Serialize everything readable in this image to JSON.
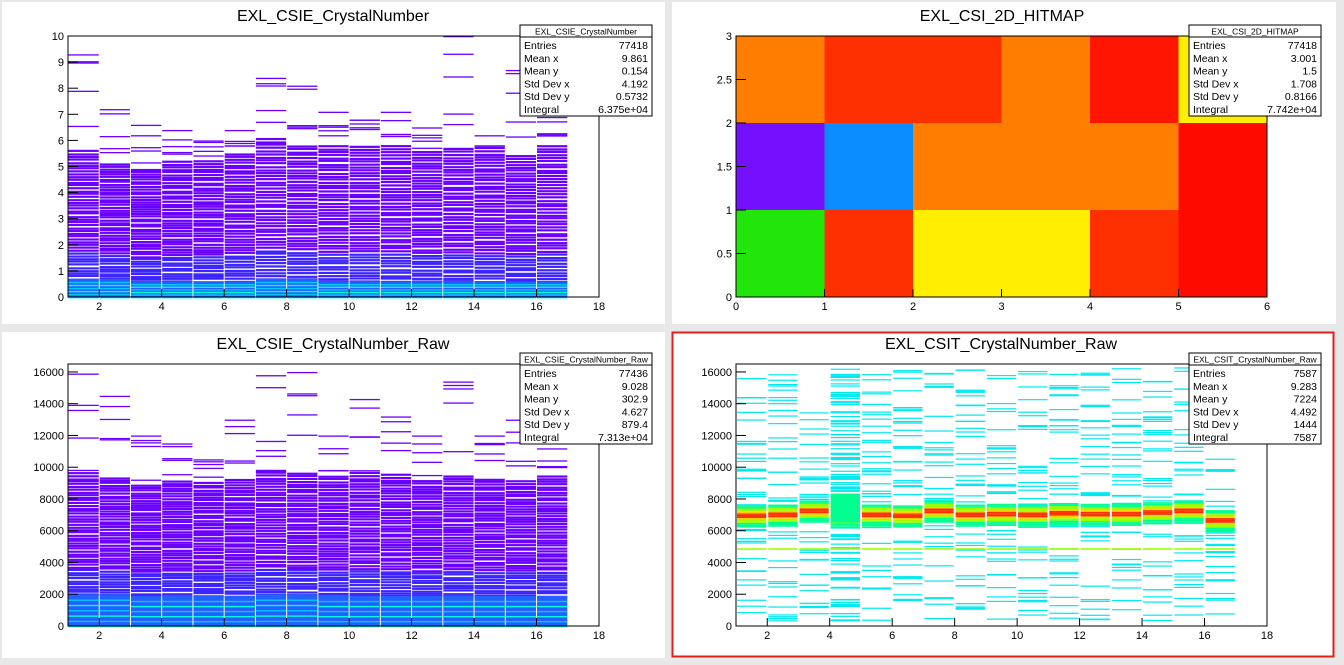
{
  "window": {
    "selected_pad_border_color": "#e0201f",
    "pad_background": "#ffffff",
    "canvas_background": "#e8e8e8"
  },
  "chart_data": [
    {
      "type": "heatmap",
      "title": "EXL_CSIE_CrystalNumber",
      "xlim": [
        1,
        18
      ],
      "ylim": [
        0,
        10
      ],
      "x_ticks": [
        "2",
        "4",
        "6",
        "8",
        "10",
        "12",
        "14",
        "16",
        "18"
      ],
      "y_ticks": [
        "0",
        "1",
        "2",
        "3",
        "4",
        "5",
        "6",
        "7",
        "8",
        "9",
        "10"
      ],
      "x_bins": [
        1,
        2,
        3,
        4,
        5,
        6,
        7,
        8,
        9,
        10,
        11,
        12,
        13,
        14,
        15,
        16
      ],
      "column_max_y": [
        9.3,
        7.2,
        6.6,
        6.4,
        6.0,
        6.4,
        8.4,
        8.1,
        7.1,
        6.8,
        7.1,
        6.5,
        10.0,
        6.2,
        8.7,
        6.9
      ],
      "bulk_top_y": [
        5.7,
        5.2,
        5.0,
        5.3,
        5.3,
        5.6,
        6.2,
        5.9,
        5.9,
        5.9,
        5.9,
        5.7,
        5.8,
        5.7,
        5.5,
        5.9
      ],
      "low_band_top_y": [
        0.7,
        0.7,
        0.6,
        0.6,
        0.6,
        0.6,
        0.7,
        0.7,
        0.6,
        0.6,
        0.6,
        0.6,
        0.6,
        0.6,
        0.6,
        0.6
      ],
      "stats": {
        "name": "EXL_CSIE_CrystalNumber",
        "rows": [
          [
            "Entries",
            "77418"
          ],
          [
            "Mean x",
            "9.861"
          ],
          [
            "Mean y",
            "0.154"
          ],
          [
            "Std Dev x",
            "4.192"
          ],
          [
            "Std Dev y",
            "0.5732"
          ],
          [
            "Integral",
            "6.375e+04"
          ]
        ]
      },
      "palette": [
        "#6a00ff",
        "#3d24ff",
        "#2460ff",
        "#00c8ff",
        "#00ffd8"
      ]
    },
    {
      "type": "heatmap",
      "title": "EXL_CSI_2D_HITMAP",
      "xlim": [
        0,
        6
      ],
      "ylim": [
        0,
        3
      ],
      "x_ticks": [
        "0",
        "1",
        "2",
        "3",
        "4",
        "5",
        "6"
      ],
      "y_ticks": [
        "0",
        "0.5",
        "1",
        "1.5",
        "2",
        "2.5",
        "3"
      ],
      "x_edges": [
        0,
        1,
        2,
        3,
        4,
        5,
        6
      ],
      "y_edges": [
        0,
        1,
        2,
        3
      ],
      "cells": [
        [
          "#22e60a",
          "#ff3000",
          "#ffee00",
          "#ffee00",
          "#ff3000",
          "#ff0a00"
        ],
        [
          "#7510ff",
          "#0a8cff",
          "#ff7d00",
          "#ff7d00",
          "#ff7d00",
          "#ff0a00"
        ],
        [
          "#ff7d00",
          "#ff3000",
          "#ff3000",
          "#ff7d00",
          "#ff1500",
          "#ffee00"
        ]
      ],
      "stats": {
        "name": "EXL_CSI_2D_HITMAP",
        "rows": [
          [
            "Entries",
            "77418"
          ],
          [
            "Mean x",
            "3.001"
          ],
          [
            "Mean y",
            "1.5"
          ],
          [
            "Std Dev x",
            "1.708"
          ],
          [
            "Std Dev y",
            "0.8166"
          ],
          [
            "Integral",
            "7.742e+04"
          ]
        ]
      }
    },
    {
      "type": "heatmap",
      "title": "EXL_CSIE_CrystalNumber_Raw",
      "xlim": [
        1,
        18
      ],
      "ylim": [
        0,
        16500
      ],
      "x_ticks": [
        "2",
        "4",
        "6",
        "8",
        "10",
        "12",
        "14",
        "16",
        "18"
      ],
      "y_ticks": [
        "0",
        "2000",
        "4000",
        "6000",
        "8000",
        "10000",
        "12000",
        "14000",
        "16000"
      ],
      "x_bins": [
        1,
        2,
        3,
        4,
        5,
        6,
        7,
        8,
        9,
        10,
        11,
        12,
        13,
        14,
        15,
        16
      ],
      "column_max_y": [
        15900,
        14500,
        12000,
        11500,
        10500,
        13000,
        15800,
        16000,
        12000,
        14300,
        13200,
        12000,
        15400,
        12000,
        13000,
        11800
      ],
      "bulk_top_y": [
        9800,
        9500,
        9000,
        9300,
        9200,
        9400,
        10000,
        9800,
        9600,
        9800,
        9700,
        9300,
        9600,
        9400,
        9300,
        9600
      ],
      "low_band_top_y": [
        2000,
        2000,
        1900,
        1900,
        1900,
        1900,
        2000,
        2000,
        1900,
        1900,
        1900,
        1900,
        1900,
        1900,
        1900,
        1900
      ],
      "stats": {
        "name": "EXL_CSIE_CrystalNumber_Raw",
        "rows": [
          [
            "Entries",
            "77436"
          ],
          [
            "Mean x",
            "9.028"
          ],
          [
            "Mean y",
            "302.9"
          ],
          [
            "Std Dev x",
            "4.627"
          ],
          [
            "Std Dev y",
            "879.4"
          ],
          [
            "Integral",
            "7.313e+04"
          ]
        ]
      },
      "palette": [
        "#6a00ff",
        "#3d24ff",
        "#2460ff",
        "#00c8ff",
        "#00ffd8"
      ]
    },
    {
      "type": "heatmap",
      "title": "EXL_CSIT_CrystalNumber_Raw",
      "xlim": [
        1,
        18
      ],
      "ylim": [
        0,
        16500
      ],
      "x_ticks": [
        "2",
        "4",
        "6",
        "8",
        "10",
        "12",
        "14",
        "16",
        "18"
      ],
      "y_ticks": [
        "0",
        "2000",
        "4000",
        "6000",
        "8000",
        "10000",
        "12000",
        "14000",
        "16000"
      ],
      "x_bins": [
        1,
        2,
        3,
        4,
        5,
        6,
        7,
        8,
        9,
        10,
        11,
        12,
        13,
        14,
        15,
        16
      ],
      "peak_y": [
        7000,
        7050,
        7300,
        6950,
        7050,
        7000,
        7300,
        7050,
        7100,
        7050,
        7150,
        7100,
        7100,
        7200,
        7300,
        6700
      ],
      "secondary_peak_y": 4900,
      "dense_column_x": 4,
      "stats": {
        "name": "EXL_CSIT_CrystalNumber_Raw",
        "rows": [
          [
            "Entries",
            "7587"
          ],
          [
            "Mean x",
            "9.283"
          ],
          [
            "Mean y",
            "7224"
          ],
          [
            "Std Dev x",
            "4.492"
          ],
          [
            "Std Dev y",
            "1444"
          ],
          [
            "Integral",
            "7587"
          ]
        ]
      },
      "palette": [
        "#00e8f0",
        "#00ff90",
        "#9cff00",
        "#ffd000",
        "#ff3000"
      ]
    }
  ]
}
